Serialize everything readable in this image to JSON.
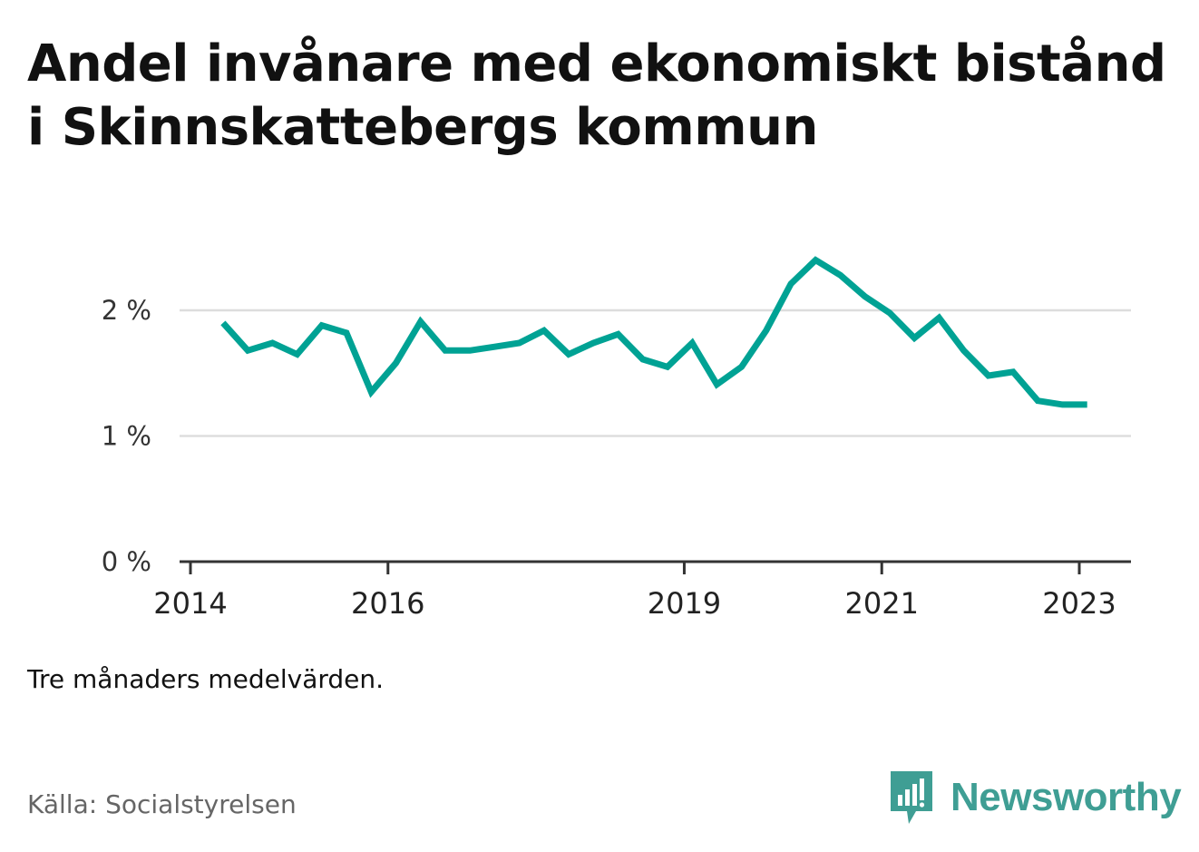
{
  "title": "Andel invånare med ekonomiskt bistånd i Skinnskattebergs kommun",
  "note": "Tre månaders medelvärden.",
  "source": "Källa: Socialstyrelsen",
  "brand": "Newsworthy",
  "colors": {
    "line": "#00a294",
    "grid": "#dddddd",
    "axis": "#333333",
    "brand": "#3f9e94"
  },
  "chart_data": {
    "type": "line",
    "title": "",
    "xlabel": "",
    "ylabel": "",
    "ylim": [
      0,
      2.5
    ],
    "yticks": [
      {
        "value": 0,
        "label": "0 %"
      },
      {
        "value": 1,
        "label": "1 %"
      },
      {
        "value": 2,
        "label": "2 %"
      }
    ],
    "xlim": [
      2013.5,
      2023.25
    ],
    "xticks": [
      {
        "value": 2013.5,
        "label": "2014"
      },
      {
        "value": 2015.5,
        "label": "2016"
      },
      {
        "value": 2018.5,
        "label": "2019"
      },
      {
        "value": 2020.5,
        "label": "2021"
      },
      {
        "value": 2022.5,
        "label": "2023"
      }
    ],
    "grid": true,
    "series": [
      {
        "values": [
          {
            "x": 2013.83,
            "y": 1.9
          },
          {
            "x": 2014.08,
            "y": 1.68
          },
          {
            "x": 2014.33,
            "y": 1.74
          },
          {
            "x": 2014.58,
            "y": 1.65
          },
          {
            "x": 2014.83,
            "y": 1.88
          },
          {
            "x": 2015.08,
            "y": 1.82
          },
          {
            "x": 2015.33,
            "y": 1.35
          },
          {
            "x": 2015.58,
            "y": 1.58
          },
          {
            "x": 2015.83,
            "y": 1.91
          },
          {
            "x": 2016.08,
            "y": 1.68
          },
          {
            "x": 2016.33,
            "y": 1.68
          },
          {
            "x": 2016.58,
            "y": 1.71
          },
          {
            "x": 2016.83,
            "y": 1.74
          },
          {
            "x": 2017.08,
            "y": 1.84
          },
          {
            "x": 2017.33,
            "y": 1.65
          },
          {
            "x": 2017.58,
            "y": 1.74
          },
          {
            "x": 2017.83,
            "y": 1.81
          },
          {
            "x": 2018.08,
            "y": 1.61
          },
          {
            "x": 2018.33,
            "y": 1.55
          },
          {
            "x": 2018.58,
            "y": 1.74
          },
          {
            "x": 2018.83,
            "y": 1.41
          },
          {
            "x": 2019.08,
            "y": 1.55
          },
          {
            "x": 2019.33,
            "y": 1.84
          },
          {
            "x": 2019.58,
            "y": 2.21
          },
          {
            "x": 2019.83,
            "y": 2.4
          },
          {
            "x": 2020.08,
            "y": 2.28
          },
          {
            "x": 2020.33,
            "y": 2.11
          },
          {
            "x": 2020.58,
            "y": 1.98
          },
          {
            "x": 2020.83,
            "y": 1.78
          },
          {
            "x": 2021.08,
            "y": 1.94
          },
          {
            "x": 2021.33,
            "y": 1.68
          },
          {
            "x": 2021.58,
            "y": 1.48
          },
          {
            "x": 2021.83,
            "y": 1.51
          },
          {
            "x": 2022.08,
            "y": 1.28
          },
          {
            "x": 2022.33,
            "y": 1.25
          },
          {
            "x": 2022.58,
            "y": 1.25
          }
        ]
      }
    ]
  }
}
